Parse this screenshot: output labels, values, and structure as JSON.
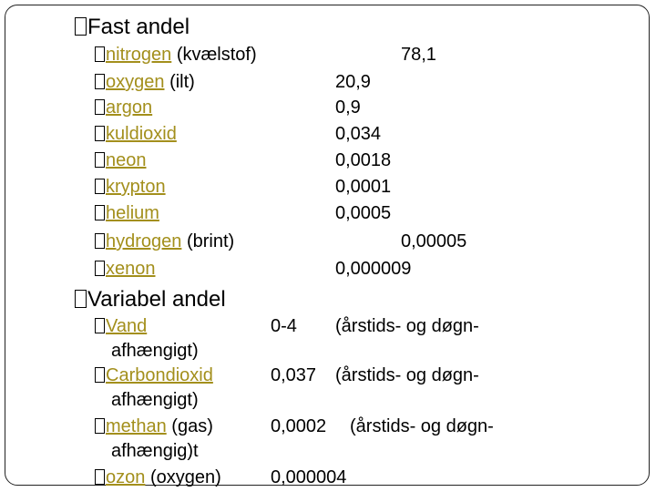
{
  "sections": [
    {
      "title": "Fast andel",
      "items": [
        {
          "name": "nitrogen",
          "note": "(kvælstof)",
          "value": "78,1"
        },
        {
          "name": "oxygen",
          "note": "(ilt)",
          "value": "20,9"
        },
        {
          "name": "argon",
          "value": "0,9"
        },
        {
          "name": "kuldioxid",
          "value": "0,034"
        },
        {
          "name": "neon",
          "value": "0,0018"
        },
        {
          "name": "krypton",
          "value": "0,0001"
        },
        {
          "name": "helium",
          "value": "0,0005"
        },
        {
          "name": "hydrogen",
          "note": "(brint)",
          "value": "0,00005"
        },
        {
          "name": "xenon",
          "value": "0,000009"
        }
      ]
    },
    {
      "title": "Variabel andel",
      "items": [
        {
          "name": "Vand",
          "value": "0-4",
          "comment": "(årstids- og døgn-",
          "continuation": "afhængigt)"
        },
        {
          "name": "Carbondioxid",
          "value": "0,037",
          "comment": "(årstids- og døgn-",
          "continuation": "afhængigt)"
        },
        {
          "name": "methan",
          "note": "(gas)",
          "value": "0,0002",
          "comment": "(årstids- og døgn-",
          "continuation": "afhængig)t"
        },
        {
          "name": "ozon",
          "note": "(oxygen)",
          "value": "0,000004"
        }
      ]
    }
  ]
}
